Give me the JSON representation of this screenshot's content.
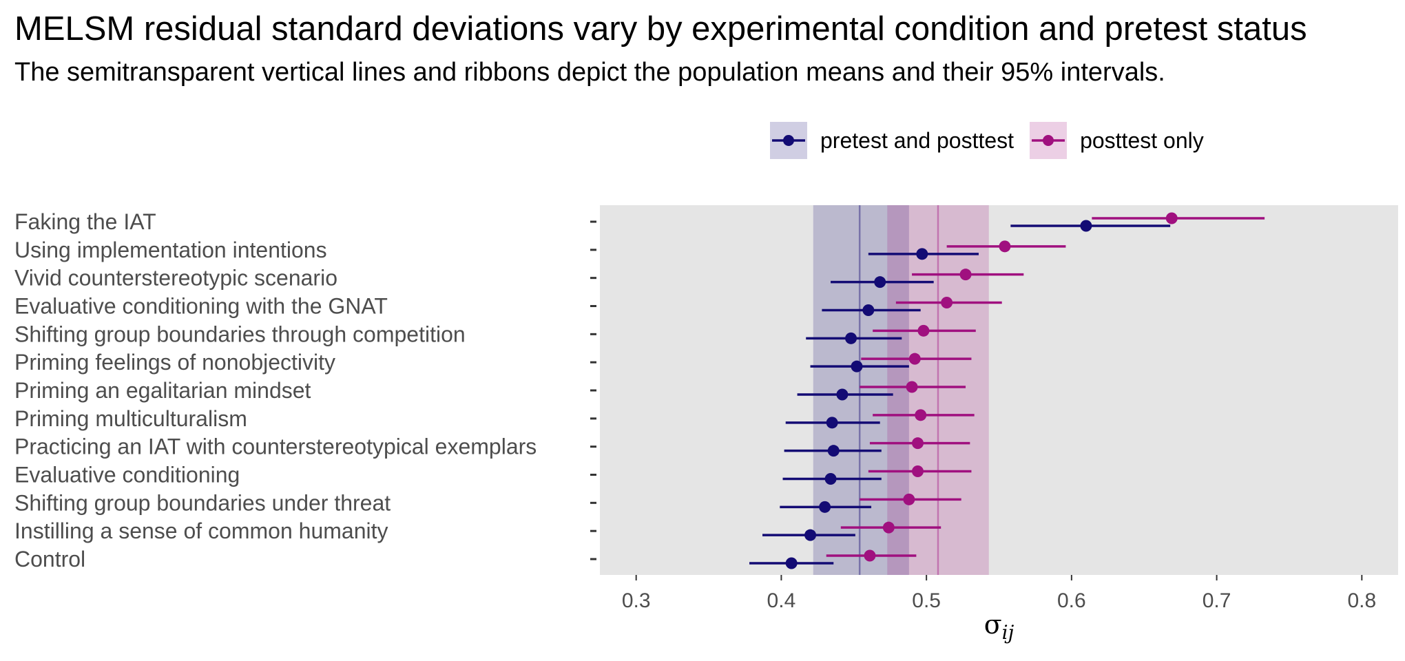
{
  "title": "MELSM residual standard deviations vary by experimental condition and pretest status",
  "subtitle": "The semitransparent vertical lines and ribbons depict the population means and their 95% intervals.",
  "chart_data": {
    "type": "scatter",
    "orientation": "horizontal",
    "xlabel": "σij",
    "xlabel_main": "σ",
    "xlabel_sub": "ij",
    "xlim": [
      0.275,
      0.825
    ],
    "xticks": [
      0.3,
      0.4,
      0.5,
      0.6,
      0.7,
      0.8
    ],
    "xtick_labels": [
      "0.3",
      "0.4",
      "0.5",
      "0.6",
      "0.7",
      "0.8"
    ],
    "grid": false,
    "legend_position": "top",
    "categories": [
      "Faking the IAT",
      "Using implementation intentions",
      "Vivid counterstereotypic scenario",
      "Evaluative conditioning with the GNAT",
      "Shifting group boundaries through competition",
      "Priming feelings of nonobjectivity",
      "Priming an egalitarian mindset",
      "Priming multiculturalism",
      "Practicing an IAT with counterstereotypical exemplars",
      "Evaluative conditioning",
      "Shifting group boundaries under threat",
      "Instilling a sense of common humanity",
      "Control"
    ],
    "series": [
      {
        "name": "pretest and posttest",
        "color": "#130b74",
        "population_mean": 0.454,
        "population_interval": [
          0.422,
          0.488
        ],
        "points": [
          0.61,
          0.497,
          0.468,
          0.46,
          0.448,
          0.452,
          0.442,
          0.435,
          0.436,
          0.434,
          0.43,
          0.42,
          0.407
        ],
        "lower": [
          0.558,
          0.46,
          0.434,
          0.428,
          0.417,
          0.42,
          0.411,
          0.403,
          0.402,
          0.401,
          0.399,
          0.387,
          0.378
        ],
        "upper": [
          0.668,
          0.536,
          0.505,
          0.496,
          0.483,
          0.488,
          0.477,
          0.468,
          0.469,
          0.469,
          0.462,
          0.451,
          0.436
        ]
      },
      {
        "name": "posttest only",
        "color": "#a0107f",
        "population_mean": 0.508,
        "population_interval": [
          0.473,
          0.543
        ],
        "points": [
          0.669,
          0.554,
          0.527,
          0.514,
          0.498,
          0.492,
          0.49,
          0.496,
          0.494,
          0.494,
          0.488,
          0.474,
          0.461
        ],
        "lower": [
          0.614,
          0.514,
          0.49,
          0.479,
          0.463,
          0.455,
          0.454,
          0.463,
          0.461,
          0.46,
          0.454,
          0.441,
          0.431
        ],
        "upper": [
          0.733,
          0.596,
          0.567,
          0.552,
          0.534,
          0.531,
          0.527,
          0.533,
          0.53,
          0.531,
          0.524,
          0.51,
          0.493
        ]
      }
    ]
  }
}
